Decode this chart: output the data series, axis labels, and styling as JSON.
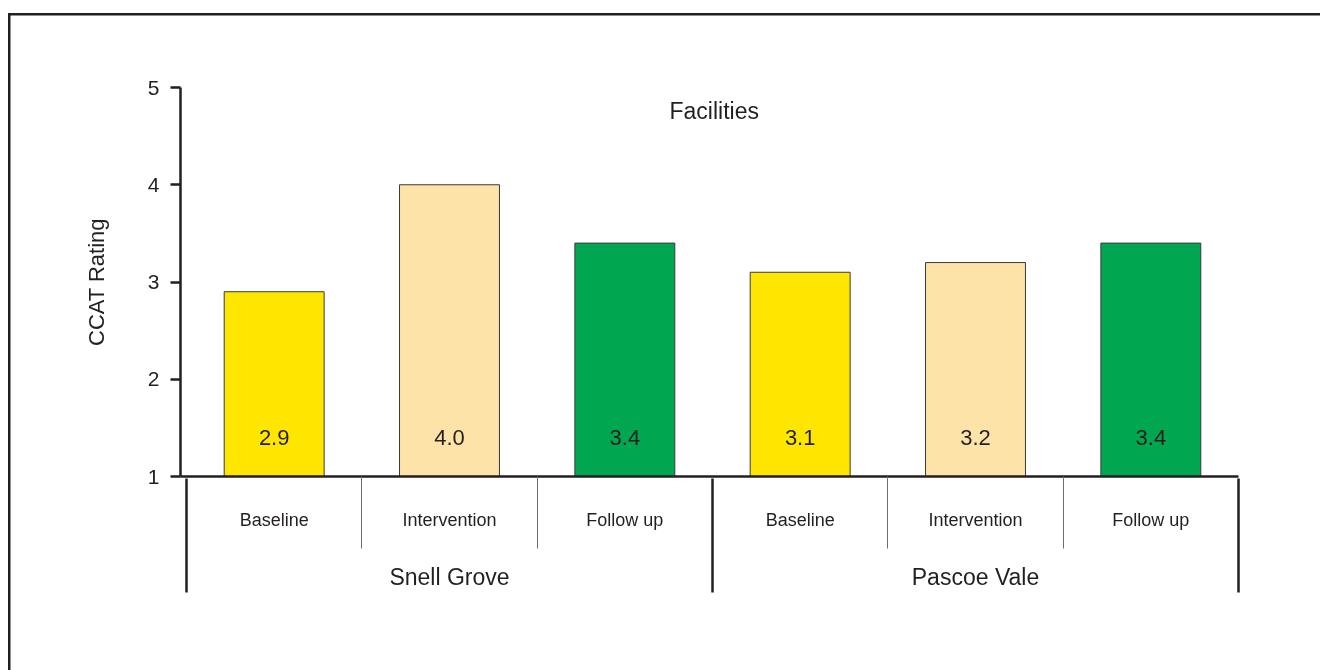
{
  "chart_data": {
    "type": "bar",
    "title": "Facilities",
    "ylabel": "CCAT Rating",
    "categories": [
      "Baseline",
      "Intervention",
      "Follow up",
      "Baseline",
      "Intervention",
      "Follow up"
    ],
    "values": [
      2.9,
      4.0,
      3.4,
      3.1,
      3.2,
      3.4
    ],
    "value_labels": [
      "2.9",
      "4.0",
      "3.4",
      "3.1",
      "3.2",
      "3.4"
    ],
    "colors": [
      "#ffe600",
      "#fde3a7",
      "#00a650",
      "#ffe600",
      "#fde3a7",
      "#00a650"
    ],
    "ylim": [
      1,
      5
    ],
    "yticks": [
      1,
      2,
      3,
      4,
      5
    ],
    "annotations": [
      "Snell Grove",
      "Pascoe Vale"
    ]
  }
}
